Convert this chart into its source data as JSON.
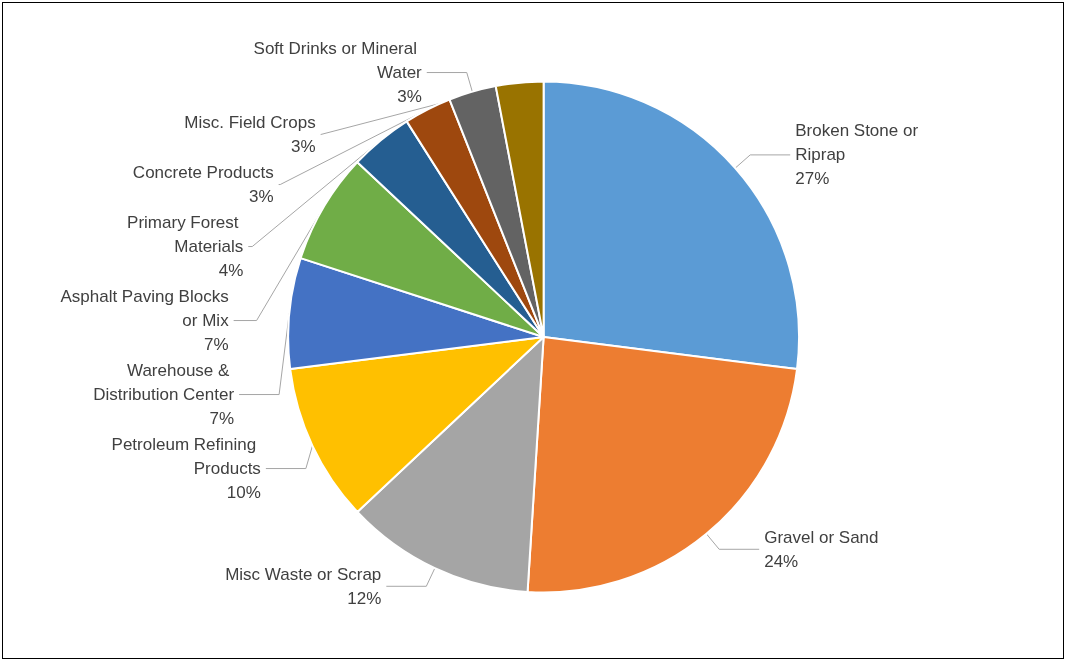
{
  "chart_data": {
    "type": "pie",
    "categories": [
      "Broken Stone or Riprap",
      "Gravel or Sand",
      "Misc Waste or Scrap",
      "Petroleum Refining Products",
      "Warehouse & Distribution Center",
      "Asphalt Paving Blocks or Mix",
      "Primary Forest Materials",
      "Concrete Products",
      "Soft Drinks or Mineral Water",
      "Misc. Field Crops"
    ],
    "values": [
      27,
      24,
      12,
      10,
      7,
      7,
      4,
      3,
      3,
      3
    ],
    "value_labels": [
      "27%",
      "24%",
      "12%",
      "10%",
      "7%",
      "7%",
      "4%",
      "3%",
      "3%",
      "3%"
    ],
    "colors": [
      "#5b9bd5",
      "#ed7d31",
      "#a5a5a5",
      "#ffc000",
      "#4472c4",
      "#70ad47",
      "#255e91",
      "#9e480e",
      "#636363",
      "#997300"
    ]
  }
}
